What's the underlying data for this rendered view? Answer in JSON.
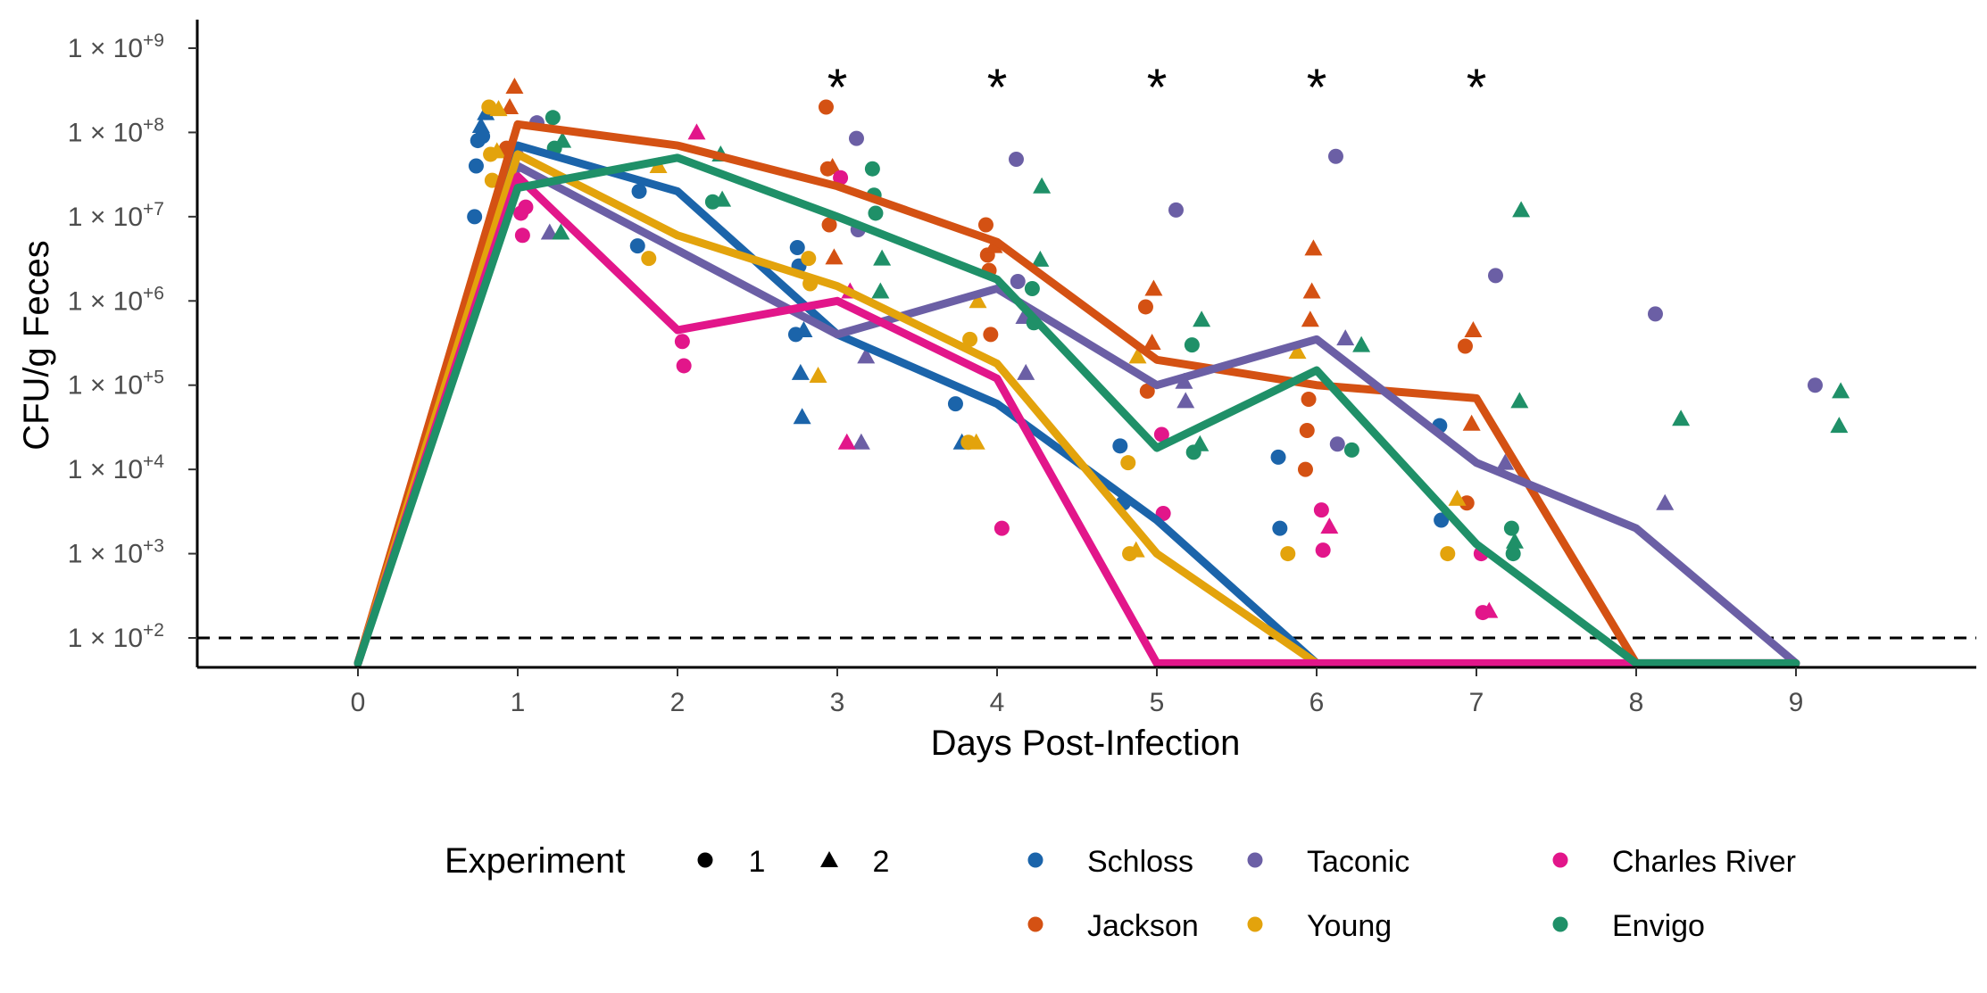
{
  "chart_data": {
    "type": "line",
    "xlabel": "Days Post-Infection",
    "ylabel": "CFU/g Feces",
    "xlim": [
      -1,
      10
    ],
    "ylim_log10": [
      1.77,
      9.3
    ],
    "x_ticks": [
      0,
      1,
      2,
      3,
      4,
      5,
      6,
      7,
      8,
      9
    ],
    "x_tick_labels": [
      "0",
      "1",
      "2",
      "3",
      "4",
      "5",
      "6",
      "7",
      "8",
      "9"
    ],
    "y_ticks_log10": [
      2,
      3,
      4,
      5,
      6,
      7,
      8,
      9
    ],
    "y_tick_base": "1 × 10",
    "y_tick_exponents": [
      "+2",
      "+3",
      "+4",
      "+5",
      "+6",
      "+7",
      "+8",
      "+9"
    ],
    "detection_limit": 100,
    "significance_days": [
      3,
      4,
      5,
      6,
      7
    ],
    "significance_marker": "*",
    "legend": {
      "shape_title": "Experiment",
      "shape_items": [
        {
          "label": "1",
          "shape": "circle"
        },
        {
          "label": "2",
          "shape": "triangle"
        }
      ]
    },
    "series": [
      {
        "name": "Schloss",
        "color": "#1b64aa",
        "x": [
          0,
          1,
          2,
          3,
          4,
          5,
          6
        ],
        "y": [
          50,
          70000000.0,
          20000000.0,
          400000.0,
          60000.0,
          2500.0,
          50
        ]
      },
      {
        "name": "Jackson",
        "color": "#d45113",
        "x": [
          0,
          1,
          2,
          3,
          4,
          5,
          6,
          7,
          8
        ],
        "y": [
          50,
          125000000.0,
          70000000.0,
          23000000.0,
          5000000.0,
          200000.0,
          100000.0,
          70000.0,
          50
        ]
      },
      {
        "name": "Taconic",
        "color": "#6b5fa5",
        "x": [
          0,
          1,
          2,
          3,
          4,
          5,
          6,
          7,
          8,
          9
        ],
        "y": [
          50,
          40000000.0,
          4000000.0,
          400000.0,
          1400000.0,
          100000.0,
          350000.0,
          12000.0,
          2000.0,
          50
        ]
      },
      {
        "name": "Young",
        "color": "#e3a30c",
        "x": [
          0,
          1,
          2,
          3,
          4,
          5,
          6
        ],
        "y": [
          50,
          55000000.0,
          6000000.0,
          1500000.0,
          180000.0,
          1000.0,
          50
        ]
      },
      {
        "name": "Charles River",
        "color": "#e2168a",
        "x": [
          0,
          1,
          2,
          3,
          4,
          5,
          6,
          7,
          8,
          9
        ],
        "y": [
          50,
          30000000.0,
          450000.0,
          1000000.0,
          120000.0,
          50,
          50,
          50,
          50,
          50
        ]
      },
      {
        "name": "Envigo",
        "color": "#1f9068",
        "x": [
          0,
          1,
          2,
          3,
          4,
          5,
          6,
          7,
          8,
          9
        ],
        "y": [
          50,
          22000000.0,
          50000000.0,
          10000000.0,
          1800000.0,
          18000.0,
          150000.0,
          1300.0,
          50,
          50
        ]
      }
    ],
    "points": [
      {
        "series": "Schloss",
        "exp": 1,
        "x": 0.73,
        "y": 10000000.0
      },
      {
        "series": "Schloss",
        "exp": 1,
        "x": 0.74,
        "y": 40000000.0
      },
      {
        "series": "Schloss",
        "exp": 1,
        "x": 0.75,
        "y": 80000000.0
      },
      {
        "series": "Schloss",
        "exp": 1,
        "x": 0.78,
        "y": 90000000.0
      },
      {
        "series": "Schloss",
        "exp": 2,
        "x": 0.77,
        "y": 120000000.0
      },
      {
        "series": "Schloss",
        "exp": 2,
        "x": 0.8,
        "y": 170000000.0
      },
      {
        "series": "Schloss",
        "exp": 1,
        "x": 1.75,
        "y": 4500000.0
      },
      {
        "series": "Schloss",
        "exp": 1,
        "x": 1.76,
        "y": 20000000.0
      },
      {
        "series": "Schloss",
        "exp": 1,
        "x": 2.75,
        "y": 4300000.0
      },
      {
        "series": "Schloss",
        "exp": 1,
        "x": 2.76,
        "y": 2600000.0
      },
      {
        "series": "Schloss",
        "exp": 1,
        "x": 2.74,
        "y": 400000.0
      },
      {
        "series": "Schloss",
        "exp": 2,
        "x": 2.77,
        "y": 140000.0
      },
      {
        "series": "Schloss",
        "exp": 2,
        "x": 2.78,
        "y": 42000.0
      },
      {
        "series": "Schloss",
        "exp": 2,
        "x": 2.79,
        "y": 450000.0
      },
      {
        "series": "Schloss",
        "exp": 1,
        "x": 3.74,
        "y": 60000.0
      },
      {
        "series": "Schloss",
        "exp": 2,
        "x": 3.78,
        "y": 21000.0
      },
      {
        "series": "Schloss",
        "exp": 1,
        "x": 4.77,
        "y": 19000.0
      },
      {
        "series": "Schloss",
        "exp": 1,
        "x": 4.79,
        "y": 4000.0
      },
      {
        "series": "Schloss",
        "exp": 1,
        "x": 5.76,
        "y": 14000.0
      },
      {
        "series": "Schloss",
        "exp": 1,
        "x": 5.77,
        "y": 2000.0
      },
      {
        "series": "Schloss",
        "exp": 1,
        "x": 6.77,
        "y": 33000.0
      },
      {
        "series": "Schloss",
        "exp": 1,
        "x": 6.78,
        "y": 2500.0
      },
      {
        "series": "Jackson",
        "exp": 1,
        "x": 0.93,
        "y": 65000000.0
      },
      {
        "series": "Jackson",
        "exp": 2,
        "x": 0.98,
        "y": 350000000.0
      },
      {
        "series": "Jackson",
        "exp": 2,
        "x": 0.95,
        "y": 200000000.0
      },
      {
        "series": "Jackson",
        "exp": 1,
        "x": 2.93,
        "y": 200000000.0
      },
      {
        "series": "Jackson",
        "exp": 1,
        "x": 2.94,
        "y": 37000000.0
      },
      {
        "series": "Jackson",
        "exp": 1,
        "x": 2.95,
        "y": 8000000.0
      },
      {
        "series": "Jackson",
        "exp": 2,
        "x": 2.98,
        "y": 3300000.0
      },
      {
        "series": "Jackson",
        "exp": 2,
        "x": 2.97,
        "y": 39000000.0
      },
      {
        "series": "Jackson",
        "exp": 1,
        "x": 3.93,
        "y": 8000000.0
      },
      {
        "series": "Jackson",
        "exp": 1,
        "x": 3.94,
        "y": 3500000.0
      },
      {
        "series": "Jackson",
        "exp": 1,
        "x": 3.95,
        "y": 2300000.0
      },
      {
        "series": "Jackson",
        "exp": 1,
        "x": 3.96,
        "y": 400000.0
      },
      {
        "series": "Jackson",
        "exp": 2,
        "x": 3.98,
        "y": 4500000.0
      },
      {
        "series": "Jackson",
        "exp": 1,
        "x": 4.93,
        "y": 850000.0
      },
      {
        "series": "Jackson",
        "exp": 1,
        "x": 4.94,
        "y": 85000.0
      },
      {
        "series": "Jackson",
        "exp": 2,
        "x": 4.98,
        "y": 1400000.0
      },
      {
        "series": "Jackson",
        "exp": 2,
        "x": 4.97,
        "y": 320000.0
      },
      {
        "series": "Jackson",
        "exp": 1,
        "x": 5.93,
        "y": 10000.0
      },
      {
        "series": "Jackson",
        "exp": 1,
        "x": 5.94,
        "y": 29000.0
      },
      {
        "series": "Jackson",
        "exp": 1,
        "x": 5.95,
        "y": 68000.0
      },
      {
        "series": "Jackson",
        "exp": 2,
        "x": 5.98,
        "y": 4200000.0
      },
      {
        "series": "Jackson",
        "exp": 2,
        "x": 5.97,
        "y": 1300000.0
      },
      {
        "series": "Jackson",
        "exp": 2,
        "x": 5.96,
        "y": 600000.0
      },
      {
        "series": "Jackson",
        "exp": 1,
        "x": 6.93,
        "y": 290000.0
      },
      {
        "series": "Jackson",
        "exp": 1,
        "x": 6.94,
        "y": 4000.0
      },
      {
        "series": "Jackson",
        "exp": 2,
        "x": 6.98,
        "y": 450000.0
      },
      {
        "series": "Jackson",
        "exp": 2,
        "x": 6.97,
        "y": 35000.0
      },
      {
        "series": "Taconic",
        "exp": 1,
        "x": 1.12,
        "y": 130000000.0
      },
      {
        "series": "Taconic",
        "exp": 2,
        "x": 1.0,
        "y": 60000000.0
      },
      {
        "series": "Taconic",
        "exp": 2,
        "x": 1.2,
        "y": 6500000.0
      },
      {
        "series": "Taconic",
        "exp": 1,
        "x": 3.12,
        "y": 85000000.0
      },
      {
        "series": "Taconic",
        "exp": 1,
        "x": 3.13,
        "y": 7000000.0
      },
      {
        "series": "Taconic",
        "exp": 2,
        "x": 3.18,
        "y": 220000.0
      },
      {
        "series": "Taconic",
        "exp": 2,
        "x": 3.15,
        "y": 21000.0
      },
      {
        "series": "Taconic",
        "exp": 1,
        "x": 4.12,
        "y": 48000000.0
      },
      {
        "series": "Taconic",
        "exp": 1,
        "x": 4.13,
        "y": 1700000.0
      },
      {
        "series": "Taconic",
        "exp": 2,
        "x": 4.18,
        "y": 140000.0
      },
      {
        "series": "Taconic",
        "exp": 2,
        "x": 4.17,
        "y": 650000.0
      },
      {
        "series": "Taconic",
        "exp": 1,
        "x": 5.12,
        "y": 12000000.0
      },
      {
        "series": "Taconic",
        "exp": 2,
        "x": 5.18,
        "y": 65000.0
      },
      {
        "series": "Taconic",
        "exp": 2,
        "x": 5.17,
        "y": 110000.0
      },
      {
        "series": "Taconic",
        "exp": 1,
        "x": 6.12,
        "y": 52000000.0
      },
      {
        "series": "Taconic",
        "exp": 1,
        "x": 6.13,
        "y": 20000.0
      },
      {
        "series": "Taconic",
        "exp": 2,
        "x": 6.18,
        "y": 360000.0
      },
      {
        "series": "Taconic",
        "exp": 1,
        "x": 7.12,
        "y": 2000000.0
      },
      {
        "series": "Taconic",
        "exp": 2,
        "x": 7.18,
        "y": 12000.0
      },
      {
        "series": "Taconic",
        "exp": 1,
        "x": 8.12,
        "y": 700000.0
      },
      {
        "series": "Taconic",
        "exp": 2,
        "x": 8.18,
        "y": 4000.0
      },
      {
        "series": "Taconic",
        "exp": 1,
        "x": 9.12,
        "y": 100000.0
      },
      {
        "series": "Young",
        "exp": 1,
        "x": 0.82,
        "y": 200000000.0
      },
      {
        "series": "Young",
        "exp": 1,
        "x": 0.83,
        "y": 55000000.0
      },
      {
        "series": "Young",
        "exp": 1,
        "x": 0.84,
        "y": 27000000.0
      },
      {
        "series": "Young",
        "exp": 2,
        "x": 0.88,
        "y": 190000000.0
      },
      {
        "series": "Young",
        "exp": 2,
        "x": 0.87,
        "y": 60000000.0
      },
      {
        "series": "Young",
        "exp": 1,
        "x": 1.82,
        "y": 3200000.0
      },
      {
        "series": "Young",
        "exp": 2,
        "x": 1.88,
        "y": 40000000.0
      },
      {
        "series": "Young",
        "exp": 1,
        "x": 2.82,
        "y": 3200000.0
      },
      {
        "series": "Young",
        "exp": 1,
        "x": 2.83,
        "y": 1600000.0
      },
      {
        "series": "Young",
        "exp": 2,
        "x": 2.88,
        "y": 130000.0
      },
      {
        "series": "Young",
        "exp": 1,
        "x": 3.82,
        "y": 21000.0
      },
      {
        "series": "Young",
        "exp": 1,
        "x": 3.83,
        "y": 350000.0
      },
      {
        "series": "Young",
        "exp": 2,
        "x": 3.88,
        "y": 1000000.0
      },
      {
        "series": "Young",
        "exp": 2,
        "x": 3.87,
        "y": 21000.0
      },
      {
        "series": "Young",
        "exp": 1,
        "x": 4.82,
        "y": 12000.0
      },
      {
        "series": "Young",
        "exp": 1,
        "x": 4.83,
        "y": 1000.0
      },
      {
        "series": "Young",
        "exp": 2,
        "x": 4.88,
        "y": 220000.0
      },
      {
        "series": "Young",
        "exp": 2,
        "x": 4.87,
        "y": 1100.0
      },
      {
        "series": "Young",
        "exp": 1,
        "x": 5.82,
        "y": 1000.0
      },
      {
        "series": "Young",
        "exp": 2,
        "x": 5.88,
        "y": 250000.0
      },
      {
        "series": "Young",
        "exp": 1,
        "x": 6.82,
        "y": 1000.0
      },
      {
        "series": "Young",
        "exp": 2,
        "x": 6.88,
        "y": 4500.0
      },
      {
        "series": "Charles River",
        "exp": 1,
        "x": 1.02,
        "y": 11000000.0
      },
      {
        "series": "Charles River",
        "exp": 1,
        "x": 1.03,
        "y": 6000000.0
      },
      {
        "series": "Charles River",
        "exp": 1,
        "x": 1.05,
        "y": 13000000.0
      },
      {
        "series": "Charles River",
        "exp": 1,
        "x": 2.03,
        "y": 330000.0
      },
      {
        "series": "Charles River",
        "exp": 1,
        "x": 2.04,
        "y": 170000.0
      },
      {
        "series": "Charles River",
        "exp": 2,
        "x": 2.12,
        "y": 100000000.0
      },
      {
        "series": "Charles River",
        "exp": 1,
        "x": 3.02,
        "y": 29000000.0
      },
      {
        "series": "Charles River",
        "exp": 2,
        "x": 3.08,
        "y": 1300000.0
      },
      {
        "series": "Charles River",
        "exp": 2,
        "x": 3.06,
        "y": 21000.0
      },
      {
        "series": "Charles River",
        "exp": 1,
        "x": 4.03,
        "y": 2000.0
      },
      {
        "series": "Charles River",
        "exp": 1,
        "x": 5.03,
        "y": 26000.0
      },
      {
        "series": "Charles River",
        "exp": 1,
        "x": 5.04,
        "y": 3000.0
      },
      {
        "series": "Charles River",
        "exp": 1,
        "x": 6.03,
        "y": 3300.0
      },
      {
        "series": "Charles River",
        "exp": 1,
        "x": 6.04,
        "y": 1100.0
      },
      {
        "series": "Charles River",
        "exp": 2,
        "x": 6.08,
        "y": 2100.0
      },
      {
        "series": "Charles River",
        "exp": 1,
        "x": 7.03,
        "y": 1000.0
      },
      {
        "series": "Charles River",
        "exp": 1,
        "x": 7.04,
        "y": 200
      },
      {
        "series": "Charles River",
        "exp": 2,
        "x": 7.08,
        "y": 210
      },
      {
        "series": "Envigo",
        "exp": 1,
        "x": 1.22,
        "y": 150000000.0
      },
      {
        "series": "Envigo",
        "exp": 1,
        "x": 1.23,
        "y": 65000000.0
      },
      {
        "series": "Envigo",
        "exp": 2,
        "x": 1.28,
        "y": 80000000.0
      },
      {
        "series": "Envigo",
        "exp": 2,
        "x": 1.27,
        "y": 6500000.0
      },
      {
        "series": "Envigo",
        "exp": 1,
        "x": 2.22,
        "y": 15000000.0
      },
      {
        "series": "Envigo",
        "exp": 2,
        "x": 2.28,
        "y": 16000000.0
      },
      {
        "series": "Envigo",
        "exp": 2,
        "x": 2.27,
        "y": 55000000.0
      },
      {
        "series": "Envigo",
        "exp": 1,
        "x": 3.22,
        "y": 37000000.0
      },
      {
        "series": "Envigo",
        "exp": 1,
        "x": 3.23,
        "y": 18000000.0
      },
      {
        "series": "Envigo",
        "exp": 1,
        "x": 3.24,
        "y": 11000000.0
      },
      {
        "series": "Envigo",
        "exp": 2,
        "x": 3.28,
        "y": 3200000.0
      },
      {
        "series": "Envigo",
        "exp": 2,
        "x": 3.27,
        "y": 1300000.0
      },
      {
        "series": "Envigo",
        "exp": 1,
        "x": 4.22,
        "y": 1400000.0
      },
      {
        "series": "Envigo",
        "exp": 1,
        "x": 4.23,
        "y": 550000.0
      },
      {
        "series": "Envigo",
        "exp": 2,
        "x": 4.28,
        "y": 23000000.0
      },
      {
        "series": "Envigo",
        "exp": 2,
        "x": 4.27,
        "y": 3100000.0
      },
      {
        "series": "Envigo",
        "exp": 1,
        "x": 5.22,
        "y": 300000.0
      },
      {
        "series": "Envigo",
        "exp": 1,
        "x": 5.23,
        "y": 16000.0
      },
      {
        "series": "Envigo",
        "exp": 2,
        "x": 5.28,
        "y": 600000.0
      },
      {
        "series": "Envigo",
        "exp": 2,
        "x": 5.27,
        "y": 20000.0
      },
      {
        "series": "Envigo",
        "exp": 1,
        "x": 6.22,
        "y": 17000.0
      },
      {
        "series": "Envigo",
        "exp": 2,
        "x": 6.28,
        "y": 300000.0
      },
      {
        "series": "Envigo",
        "exp": 1,
        "x": 7.22,
        "y": 2000.0
      },
      {
        "series": "Envigo",
        "exp": 1,
        "x": 7.23,
        "y": 1000.0
      },
      {
        "series": "Envigo",
        "exp": 2,
        "x": 7.28,
        "y": 12000000.0
      },
      {
        "series": "Envigo",
        "exp": 2,
        "x": 7.27,
        "y": 65000.0
      },
      {
        "series": "Envigo",
        "exp": 2,
        "x": 7.24,
        "y": 1400.0
      },
      {
        "series": "Envigo",
        "exp": 2,
        "x": 8.28,
        "y": 40000.0
      },
      {
        "series": "Envigo",
        "exp": 2,
        "x": 9.28,
        "y": 85000.0
      },
      {
        "series": "Envigo",
        "exp": 2,
        "x": 9.27,
        "y": 33000.0
      }
    ]
  }
}
